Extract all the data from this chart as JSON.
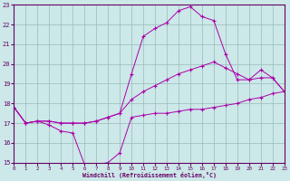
{
  "xlabel": "Windchill (Refroidissement éolien,°C)",
  "background_color": "#cce8e8",
  "line_color": "#aa00aa",
  "grid_color": "#99bbbb",
  "xmin": 0,
  "xmax": 23,
  "ymin": 15,
  "ymax": 23,
  "xticks": [
    0,
    1,
    2,
    3,
    4,
    5,
    6,
    7,
    8,
    9,
    10,
    11,
    12,
    13,
    14,
    15,
    16,
    17,
    18,
    19,
    20,
    21,
    22,
    23
  ],
  "yticks": [
    15,
    16,
    17,
    18,
    19,
    20,
    21,
    22,
    23
  ],
  "line1_x": [
    0,
    1,
    2,
    3,
    4,
    5,
    6,
    7,
    8,
    9,
    10,
    11,
    12,
    13,
    14,
    15,
    16,
    17,
    18,
    19,
    20,
    21,
    22,
    23
  ],
  "line1_y": [
    17.8,
    17.0,
    17.1,
    16.9,
    16.6,
    16.5,
    14.9,
    14.9,
    15.0,
    15.5,
    17.3,
    17.4,
    17.5,
    17.5,
    17.6,
    17.7,
    17.7,
    17.8,
    17.9,
    18.0,
    18.2,
    18.3,
    18.5,
    18.6
  ],
  "line2_x": [
    0,
    1,
    2,
    3,
    4,
    5,
    6,
    7,
    8,
    9,
    10,
    11,
    12,
    13,
    14,
    15,
    16,
    17,
    18,
    19,
    20,
    21,
    22,
    23
  ],
  "line2_y": [
    17.8,
    17.0,
    17.1,
    17.1,
    17.0,
    17.0,
    17.0,
    17.1,
    17.3,
    17.5,
    18.2,
    18.6,
    18.9,
    19.2,
    19.5,
    19.7,
    19.9,
    20.1,
    19.8,
    19.5,
    19.2,
    19.3,
    19.3,
    18.6
  ],
  "line3_x": [
    0,
    1,
    2,
    3,
    4,
    5,
    6,
    7,
    8,
    9,
    10,
    11,
    12,
    13,
    14,
    15,
    16,
    17,
    18,
    19,
    20,
    21,
    22,
    23
  ],
  "line3_y": [
    17.8,
    17.0,
    17.1,
    17.1,
    17.0,
    17.0,
    17.0,
    17.1,
    17.3,
    17.5,
    19.5,
    21.4,
    21.8,
    22.1,
    22.7,
    22.9,
    22.4,
    22.2,
    20.5,
    19.2,
    19.2,
    19.7,
    19.3,
    18.6
  ]
}
